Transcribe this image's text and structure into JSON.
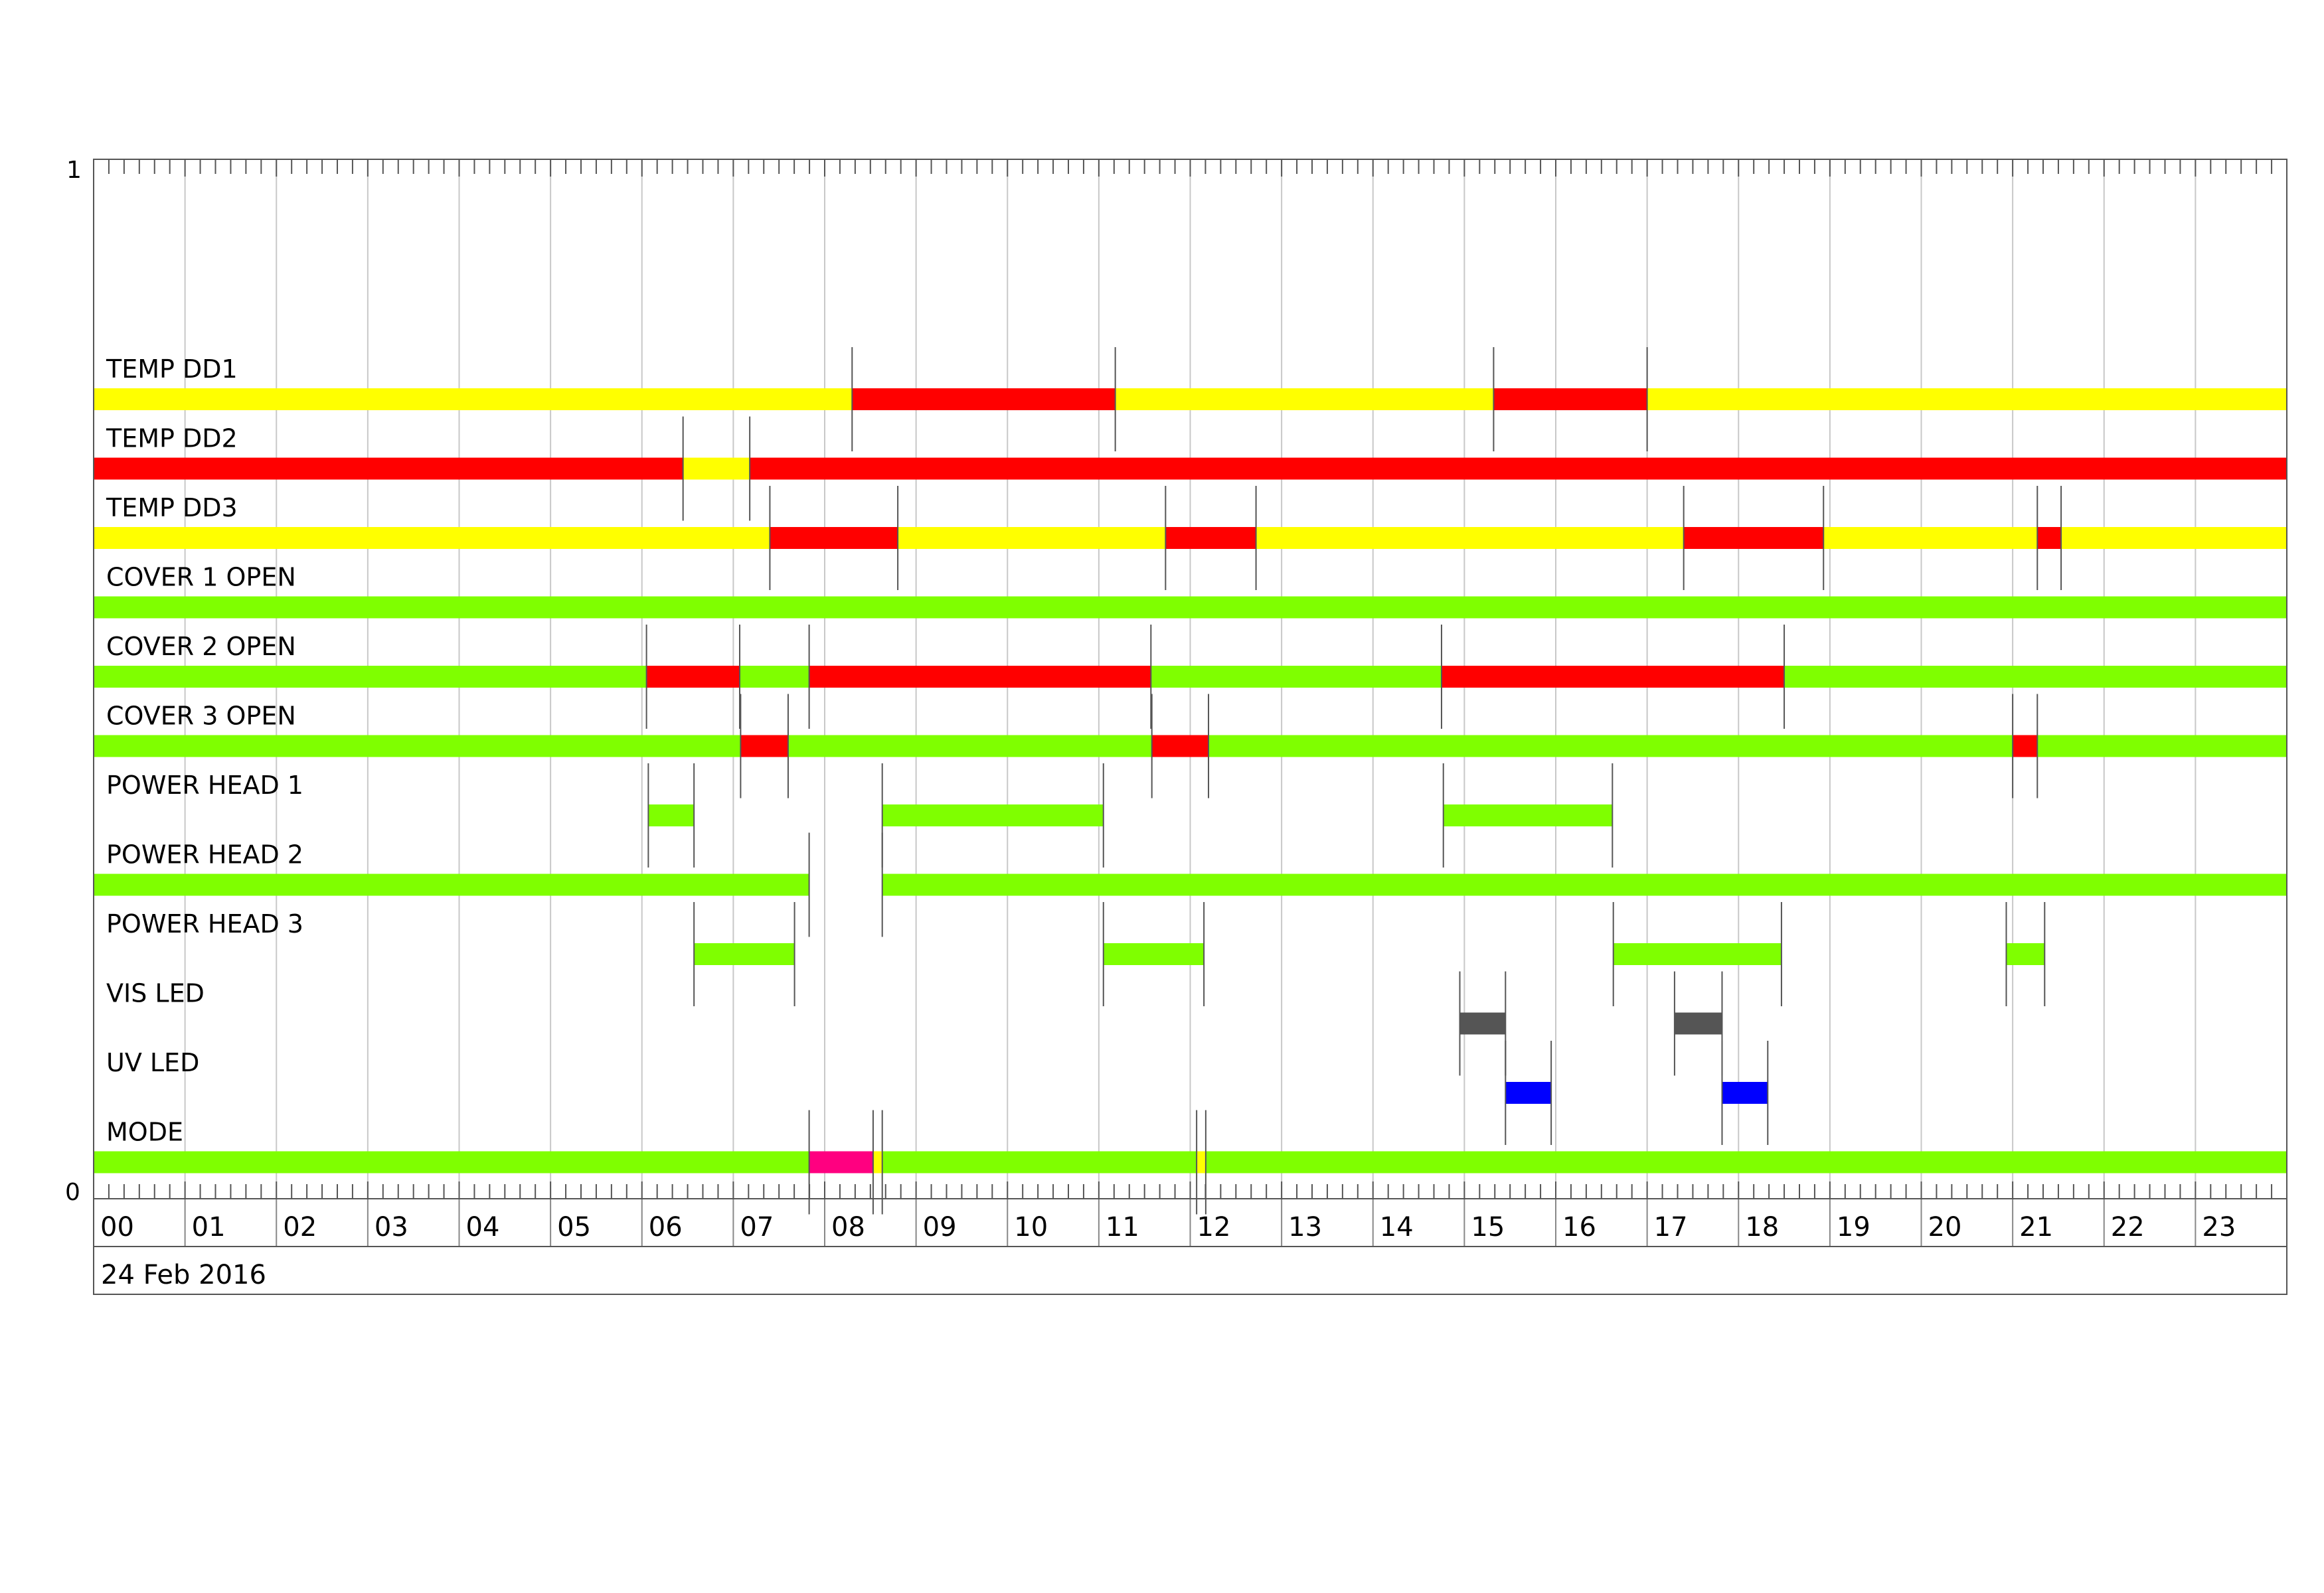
{
  "chart_data": {
    "type": "timeline",
    "title": "",
    "date_label": "24 Feb 2016",
    "y_axis": {
      "top_label": "1",
      "bottom_label": "0"
    },
    "x_axis": {
      "unit": "hour",
      "range": [
        0,
        24
      ],
      "tick_labels": [
        "00",
        "01",
        "02",
        "03",
        "04",
        "05",
        "06",
        "07",
        "08",
        "09",
        "10",
        "11",
        "12",
        "13",
        "14",
        "15",
        "16",
        "17",
        "18",
        "19",
        "20",
        "21",
        "22",
        "23"
      ]
    },
    "colors": {
      "yellow": "#FFFF00",
      "red": "#FF0000",
      "green": "#7FFF00",
      "pink": "#FF0080",
      "gray": "#555555",
      "blue": "#0000FF"
    },
    "series": [
      {
        "name": "TEMP DD1",
        "segments": [
          {
            "start": 0.0,
            "end": 8.3,
            "color": "yellow"
          },
          {
            "start": 8.3,
            "end": 11.18,
            "color": "red"
          },
          {
            "start": 11.18,
            "end": 15.32,
            "color": "yellow"
          },
          {
            "start": 15.32,
            "end": 17.0,
            "color": "red"
          },
          {
            "start": 17.0,
            "end": 24.0,
            "color": "yellow"
          }
        ]
      },
      {
        "name": "TEMP DD2",
        "segments": [
          {
            "start": 0.0,
            "end": 6.45,
            "color": "red"
          },
          {
            "start": 6.45,
            "end": 7.18,
            "color": "yellow"
          },
          {
            "start": 7.18,
            "end": 24.0,
            "color": "red"
          }
        ]
      },
      {
        "name": "TEMP DD3",
        "segments": [
          {
            "start": 0.0,
            "end": 7.4,
            "color": "yellow"
          },
          {
            "start": 7.4,
            "end": 8.8,
            "color": "red"
          },
          {
            "start": 8.8,
            "end": 11.73,
            "color": "yellow"
          },
          {
            "start": 11.73,
            "end": 12.72,
            "color": "red"
          },
          {
            "start": 12.72,
            "end": 17.4,
            "color": "yellow"
          },
          {
            "start": 17.4,
            "end": 18.93,
            "color": "red"
          },
          {
            "start": 18.93,
            "end": 21.27,
            "color": "yellow"
          },
          {
            "start": 21.27,
            "end": 21.53,
            "color": "red"
          },
          {
            "start": 21.53,
            "end": 24.0,
            "color": "yellow"
          }
        ]
      },
      {
        "name": "COVER  1  OPEN",
        "segments": [
          {
            "start": 0.0,
            "end": 24.0,
            "color": "green"
          }
        ]
      },
      {
        "name": "COVER  2  OPEN",
        "segments": [
          {
            "start": 0.0,
            "end": 6.05,
            "color": "green"
          },
          {
            "start": 6.05,
            "end": 7.07,
            "color": "red"
          },
          {
            "start": 7.07,
            "end": 7.83,
            "color": "green"
          },
          {
            "start": 7.83,
            "end": 11.57,
            "color": "red"
          },
          {
            "start": 11.57,
            "end": 14.75,
            "color": "green"
          },
          {
            "start": 14.75,
            "end": 18.5,
            "color": "red"
          },
          {
            "start": 18.5,
            "end": 24.0,
            "color": "green"
          }
        ]
      },
      {
        "name": "COVER  3  OPEN",
        "segments": [
          {
            "start": 0.0,
            "end": 7.08,
            "color": "green"
          },
          {
            "start": 7.08,
            "end": 7.6,
            "color": "red"
          },
          {
            "start": 7.6,
            "end": 11.58,
            "color": "green"
          },
          {
            "start": 11.58,
            "end": 12.2,
            "color": "red"
          },
          {
            "start": 12.2,
            "end": 21.0,
            "color": "green"
          },
          {
            "start": 21.0,
            "end": 21.27,
            "color": "red"
          },
          {
            "start": 21.27,
            "end": 24.0,
            "color": "green"
          }
        ]
      },
      {
        "name": "POWER  HEAD  1",
        "segments": [
          {
            "start": 6.07,
            "end": 6.57,
            "color": "green"
          },
          {
            "start": 8.63,
            "end": 11.05,
            "color": "green"
          },
          {
            "start": 14.77,
            "end": 16.62,
            "color": "green"
          }
        ]
      },
      {
        "name": "POWER  HEAD  2",
        "segments": [
          {
            "start": 0.0,
            "end": 7.83,
            "color": "green"
          },
          {
            "start": 8.63,
            "end": 24.0,
            "color": "green"
          }
        ]
      },
      {
        "name": "POWER  HEAD  3",
        "segments": [
          {
            "start": 6.57,
            "end": 7.67,
            "color": "green"
          },
          {
            "start": 11.05,
            "end": 12.15,
            "color": "green"
          },
          {
            "start": 16.63,
            "end": 18.47,
            "color": "green"
          },
          {
            "start": 20.93,
            "end": 21.35,
            "color": "green"
          }
        ]
      },
      {
        "name": "VIS  LED",
        "segments": [
          {
            "start": 14.95,
            "end": 15.45,
            "color": "gray"
          },
          {
            "start": 17.3,
            "end": 17.82,
            "color": "gray"
          }
        ]
      },
      {
        "name": "UV  LED",
        "segments": [
          {
            "start": 15.45,
            "end": 15.95,
            "color": "blue"
          },
          {
            "start": 17.82,
            "end": 18.32,
            "color": "blue"
          }
        ]
      },
      {
        "name": "MODE",
        "segments": [
          {
            "start": 0.0,
            "end": 7.83,
            "color": "green"
          },
          {
            "start": 7.83,
            "end": 8.53,
            "color": "pink"
          },
          {
            "start": 8.53,
            "end": 8.63,
            "color": "yellow"
          },
          {
            "start": 8.63,
            "end": 12.07,
            "color": "green"
          },
          {
            "start": 12.07,
            "end": 12.17,
            "color": "yellow"
          },
          {
            "start": 12.17,
            "end": 24.0,
            "color": "green"
          }
        ]
      }
    ]
  }
}
